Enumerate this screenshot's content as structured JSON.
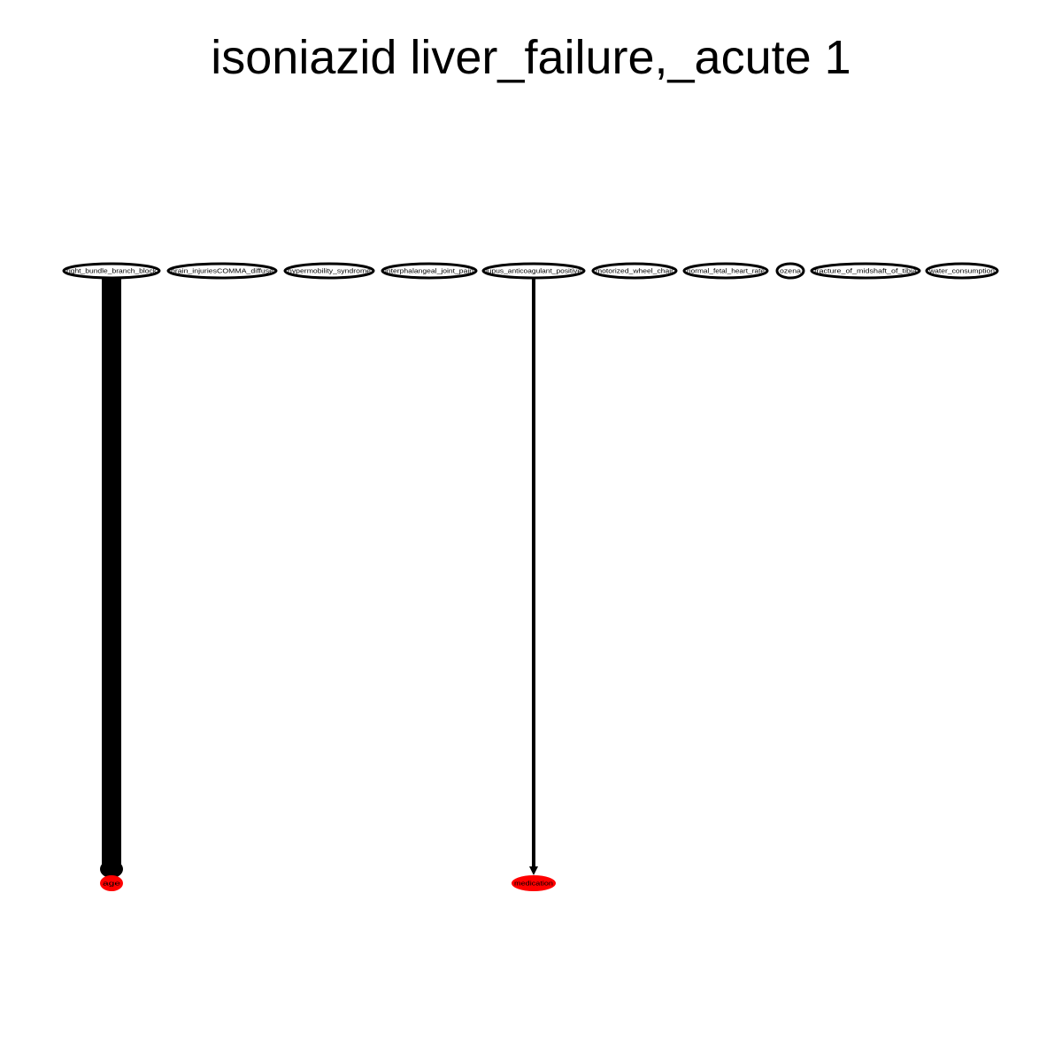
{
  "title": "isoniazid liver_failure,_acute 1",
  "top_nodes": [
    {
      "id": "n1",
      "label": "right_bundle_branch_block"
    },
    {
      "id": "n2",
      "label": "brain_injuriesCOMMA_diffuse"
    },
    {
      "id": "n3",
      "label": "hypermobility_syndrome"
    },
    {
      "id": "n4",
      "label": "interphalangeal_joint_pain"
    },
    {
      "id": "n5",
      "label": "lupus_anticoagulant_positive"
    },
    {
      "id": "n6",
      "label": "motorized_wheel_chair"
    },
    {
      "id": "n7",
      "label": "normal_fetal_heart_rate"
    },
    {
      "id": "n8",
      "label": "ozena"
    },
    {
      "id": "n9",
      "label": "fracture_of_midshaft_of_tibia"
    },
    {
      "id": "n10",
      "label": "water_consumption"
    }
  ],
  "bottom_nodes": [
    {
      "id": "b1",
      "label": "age",
      "color": "#ff0000"
    },
    {
      "id": "b2",
      "label": "medication",
      "color": "#ff0000"
    }
  ],
  "edges": [
    {
      "from": "n1",
      "to": "b1",
      "weight": "heavy"
    },
    {
      "from": "n5",
      "to": "b2",
      "weight": "light"
    }
  ]
}
